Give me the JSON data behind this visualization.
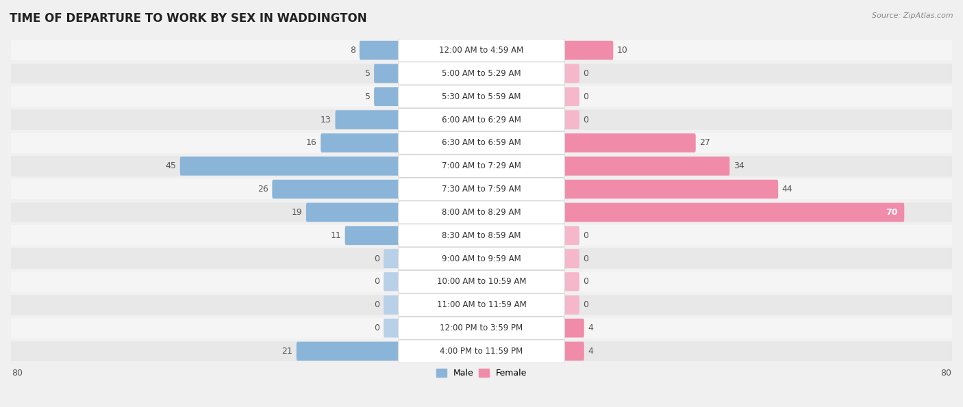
{
  "title": "TIME OF DEPARTURE TO WORK BY SEX IN WADDINGTON",
  "source": "Source: ZipAtlas.com",
  "categories": [
    "12:00 AM to 4:59 AM",
    "5:00 AM to 5:29 AM",
    "5:30 AM to 5:59 AM",
    "6:00 AM to 6:29 AM",
    "6:30 AM to 6:59 AM",
    "7:00 AM to 7:29 AM",
    "7:30 AM to 7:59 AM",
    "8:00 AM to 8:29 AM",
    "8:30 AM to 8:59 AM",
    "9:00 AM to 9:59 AM",
    "10:00 AM to 10:59 AM",
    "11:00 AM to 11:59 AM",
    "12:00 PM to 3:59 PM",
    "4:00 PM to 11:59 PM"
  ],
  "male_values": [
    8,
    5,
    5,
    13,
    16,
    45,
    26,
    19,
    11,
    0,
    0,
    0,
    0,
    21
  ],
  "female_values": [
    10,
    0,
    0,
    0,
    27,
    34,
    44,
    70,
    0,
    0,
    0,
    0,
    4,
    4
  ],
  "male_color": "#8ab4d8",
  "female_color": "#f08caa",
  "male_color_zero": "#b8d0e8",
  "female_color_zero": "#f5b8cb",
  "axis_max": 80,
  "bg_color": "#f0f0f0",
  "row_bg_even": "#f5f5f5",
  "row_bg_odd": "#e8e8e8",
  "title_fontsize": 12,
  "label_fontsize": 8.5,
  "value_fontsize": 9
}
